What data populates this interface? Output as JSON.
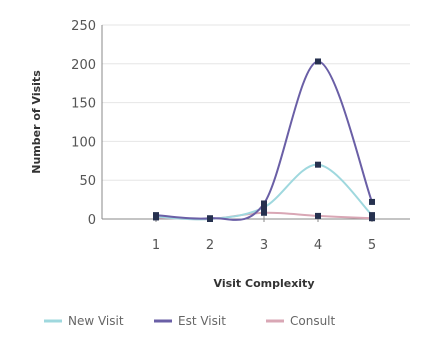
{
  "chart_data": {
    "type": "line",
    "xlabel": "Visit Complexity",
    "ylabel": "Number of Visits",
    "categories": [
      "1",
      "2",
      "3",
      "4",
      "5"
    ],
    "ylim": [
      0,
      250
    ],
    "yticks": [
      0,
      50,
      100,
      150,
      200,
      250
    ],
    "grid": "horizontal",
    "legend_position": "bottom",
    "smooth": true,
    "series": [
      {
        "name": "New Visit",
        "color": "#9fd8de",
        "values": [
          3,
          0,
          15,
          70,
          5
        ]
      },
      {
        "name": "Est Visit",
        "color": "#6a5fa6",
        "values": [
          5,
          1,
          20,
          203,
          22
        ]
      },
      {
        "name": "Consult",
        "color": "#d9a7b5",
        "values": [
          2,
          0,
          8,
          4,
          1
        ]
      }
    ],
    "marker_color": "#26314f"
  }
}
